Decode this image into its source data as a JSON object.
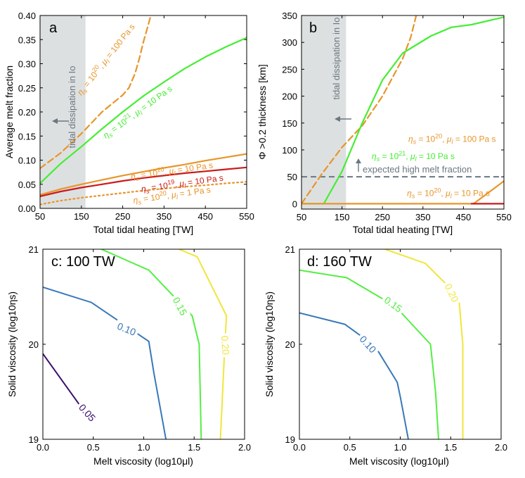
{
  "chart_data": [
    {
      "id": "a",
      "type": "line",
      "panel_label": "a",
      "xlabel": "Total tidal heating [TW]",
      "ylabel": "Average melt fraction",
      "xlim": [
        50,
        550
      ],
      "ylim": [
        0,
        0.4
      ],
      "xticks": [
        50,
        150,
        250,
        350,
        450,
        550
      ],
      "yticks": [
        0,
        0.05,
        0.1,
        0.15,
        0.2,
        0.25,
        0.3,
        0.35,
        0.4
      ],
      "xtick_labels": [
        "50",
        "150",
        "250",
        "350",
        "450",
        "550"
      ],
      "ytick_labels": [
        "0.00",
        "0.05",
        "0.10",
        "0.15",
        "0.20",
        "0.25",
        "0.30",
        "0.35",
        "0.40"
      ],
      "shade": {
        "x": [
          50,
          160
        ],
        "label": "tidal dissipation in Io"
      },
      "series": [
        {
          "name": "ηs = 10^20, μl = 100 Pa s",
          "color": "#e8952a",
          "style": "dashed",
          "x": [
            50,
            100,
            150,
            200,
            250,
            265,
            280,
            290,
            300,
            310,
            318
          ],
          "y": [
            0.083,
            0.115,
            0.155,
            0.2,
            0.235,
            0.25,
            0.28,
            0.31,
            0.345,
            0.375,
            0.4
          ]
        },
        {
          "name": "ηs = 10^21, μl = 10 Pa s",
          "color": "#44ee33",
          "style": "solid",
          "x": [
            50,
            100,
            150,
            200,
            250,
            300,
            350,
            400,
            450,
            500,
            550
          ],
          "y": [
            0.052,
            0.093,
            0.128,
            0.165,
            0.2,
            0.233,
            0.262,
            0.29,
            0.314,
            0.335,
            0.354
          ]
        },
        {
          "name": "ηs = 10^20, μl = 10 Pa s",
          "color": "#e8952a",
          "style": "solid",
          "x": [
            50,
            100,
            150,
            200,
            250,
            300,
            350,
            400,
            450,
            500,
            550
          ],
          "y": [
            0.028,
            0.04,
            0.05,
            0.059,
            0.068,
            0.076,
            0.084,
            0.091,
            0.099,
            0.106,
            0.113
          ]
        },
        {
          "name": "ηs = 10^19, μl = 10 Pa s",
          "color": "#cc1a1a",
          "style": "solid",
          "x": [
            50,
            100,
            150,
            200,
            250,
            300,
            350,
            400,
            450,
            500,
            550
          ],
          "y": [
            0.025,
            0.035,
            0.043,
            0.05,
            0.057,
            0.063,
            0.068,
            0.073,
            0.077,
            0.081,
            0.085
          ]
        },
        {
          "name": "ηs = 10^20, μl = 1 Pa s",
          "color": "#e8952a",
          "style": "dotted",
          "x": [
            50,
            100,
            150,
            200,
            250,
            300,
            350,
            400,
            450,
            500,
            550
          ],
          "y": [
            0.008,
            0.016,
            0.022,
            0.027,
            0.032,
            0.037,
            0.041,
            0.045,
            0.048,
            0.052,
            0.055
          ]
        }
      ],
      "annotations": [
        {
          "text": "ηs = 10^20, μl = 100 Pa s",
          "color": "#e8952a",
          "x": 215,
          "y": 0.305,
          "rotate": -52
        },
        {
          "text": "ηs = 10^21, μl = 10 Pa s",
          "color": "#44ee33",
          "x": 290,
          "y": 0.195,
          "rotate": -36
        },
        {
          "text": "ηs = 10^20, μl = 10 Pa s",
          "color": "#e8952a",
          "x": 370,
          "y": 0.072,
          "rotate": -8
        },
        {
          "text": "ηs = 10^19, μl = 10 Pa s",
          "color": "#cc1a1a",
          "x": 395,
          "y": 0.046,
          "rotate": -8
        },
        {
          "text": "ηs = 10^20, μl = 1 Pa s",
          "color": "#e8952a",
          "x": 370,
          "y": 0.022,
          "rotate": -8
        }
      ]
    },
    {
      "id": "b",
      "type": "line",
      "panel_label": "b",
      "xlabel": "Total tidal heating [TW]",
      "ylabel": "Φ >0.2 thickness [km]",
      "xlim": [
        50,
        550
      ],
      "ylim": [
        -10,
        350
      ],
      "xticks": [
        50,
        150,
        250,
        350,
        450,
        550
      ],
      "yticks": [
        0,
        50,
        100,
        150,
        200,
        250,
        300,
        350
      ],
      "xtick_labels": [
        "50",
        "150",
        "250",
        "350",
        "450",
        "550"
      ],
      "ytick_labels": [
        "0",
        "50",
        "100",
        "150",
        "200",
        "250",
        "300",
        "350"
      ],
      "shade": {
        "x": [
          50,
          160
        ],
        "label": "tidal dissipation in Io"
      },
      "reference_line": {
        "y": 50,
        "label": "expected high melt fraction",
        "color": "#6b7780"
      },
      "series": [
        {
          "name": "ηs = 10^20, μl = 100 Pa s",
          "color": "#e8952a",
          "style": "dashed",
          "x": [
            50,
            100,
            150,
            200,
            250,
            300,
            320,
            330,
            340,
            350
          ],
          "y": [
            0,
            55,
            105,
            145,
            200,
            270,
            310,
            340,
            370,
            400
          ]
        },
        {
          "name": "ηs = 10^21, μl = 10 Pa s",
          "color": "#44ee33",
          "style": "solid",
          "x": [
            50,
            105,
            150,
            200,
            250,
            300,
            370,
            420,
            470,
            550
          ],
          "y": [
            0,
            0,
            60,
            150,
            230,
            280,
            312,
            328,
            333,
            347
          ]
        },
        {
          "name": "ηs = 10^20, μl = 10 Pa s",
          "color": "#e8952a",
          "style": "solid",
          "x": [
            50,
            475,
            550
          ],
          "y": [
            0,
            0,
            42
          ]
        },
        {
          "name": "ηs = 10^19, μl = 10 Pa s",
          "color": "#cc1a1a",
          "style": "solid",
          "x": [
            470,
            550
          ],
          "y": [
            0,
            0
          ]
        }
      ],
      "annotations": [
        {
          "text": "ηs = 10^20, μl = 100 Pa s",
          "color": "#e8952a",
          "x": 422,
          "y": 115,
          "rotate": 0
        },
        {
          "text": "ηs = 10^21, μl = 10 Pa s",
          "color": "#44ee33",
          "x": 326,
          "y": 83,
          "rotate": 0
        },
        {
          "text": "ηs = 10^20, μl = 10 Pa s",
          "color": "#e8952a",
          "x": 413,
          "y": 14,
          "rotate": 0
        }
      ]
    },
    {
      "id": "c",
      "type": "contour",
      "panel_label": "c: 100 TW",
      "xlabel": "Melt viscosity (log10μl)",
      "ylabel": "Solid viscosity (log10ηs)",
      "xlim": [
        0,
        2
      ],
      "ylim": [
        19,
        21
      ],
      "xticks": [
        0,
        0.5,
        1,
        1.5,
        2
      ],
      "yticks": [
        19,
        20,
        21
      ],
      "xtick_labels": [
        "0.0",
        "0.5",
        "1.0",
        "1.5",
        "2.0"
      ],
      "ytick_labels": [
        "19",
        "20",
        "21"
      ],
      "contours": [
        {
          "level": "0.05",
          "color": "#3b0f70",
          "x": [
            0,
            0.44
          ],
          "y": [
            19.9,
            19.25
          ],
          "label_pos": [
            0.44,
            19.28
          ],
          "label_rot": 48
        },
        {
          "level": "0.10",
          "color": "#3878b8",
          "x": [
            0,
            0.48,
            1.05,
            1.1,
            1.22
          ],
          "y": [
            20.6,
            20.44,
            20.03,
            19.7,
            19.0
          ],
          "label_pos": [
            0.83,
            20.16
          ],
          "label_rot": 22
        },
        {
          "level": "0.15",
          "color": "#55ee44",
          "x": [
            0.58,
            1.05,
            1.48,
            1.55,
            1.57
          ],
          "y": [
            21.0,
            20.78,
            20.3,
            20.0,
            19.0
          ],
          "label_pos": [
            1.36,
            20.4
          ],
          "label_rot": 62
        },
        {
          "level": "0.20",
          "color": "#f0e63c",
          "x": [
            1.35,
            1.53,
            1.82,
            1.8,
            1.76
          ],
          "y": [
            21.0,
            20.92,
            20.3,
            19.9,
            19.0
          ],
          "label_pos": [
            1.81,
            19.99
          ],
          "label_rot": 86
        }
      ]
    },
    {
      "id": "d",
      "type": "contour",
      "panel_label": "d: 160 TW",
      "xlabel": "Melt viscosity (log10μl)",
      "ylabel": "Solid viscosity (log10ηs)",
      "xlim": [
        0,
        2
      ],
      "ylim": [
        19,
        21
      ],
      "xticks": [
        0,
        0.5,
        1,
        1.5,
        2
      ],
      "yticks": [
        19,
        20,
        21
      ],
      "xtick_labels": [
        "0.0",
        "0.5",
        "1.0",
        "1.5",
        "2.0"
      ],
      "ytick_labels": [
        "19",
        "20",
        "21"
      ],
      "contours": [
        {
          "level": "0.10",
          "color": "#3878b8",
          "x": [
            0,
            0.45,
            0.75,
            0.97,
            1.0,
            1.08
          ],
          "y": [
            20.33,
            20.21,
            19.98,
            19.6,
            19.45,
            19.0
          ],
          "label_pos": [
            0.68,
            20.0
          ],
          "label_rot": 48
        },
        {
          "level": "0.15",
          "color": "#55ee44",
          "x": [
            0,
            0.47,
            0.95,
            1.3,
            1.35,
            1.38
          ],
          "y": [
            20.78,
            20.7,
            20.4,
            20.0,
            19.5,
            19.0
          ],
          "label_pos": [
            0.93,
            20.42
          ],
          "label_rot": 36
        },
        {
          "level": "0.20",
          "color": "#f0e63c",
          "x": [
            0.85,
            1.25,
            1.58,
            1.62,
            1.62
          ],
          "y": [
            21.0,
            20.85,
            20.5,
            20.0,
            19.0
          ],
          "label_pos": [
            1.51,
            20.54
          ],
          "label_rot": 64
        }
      ]
    }
  ]
}
